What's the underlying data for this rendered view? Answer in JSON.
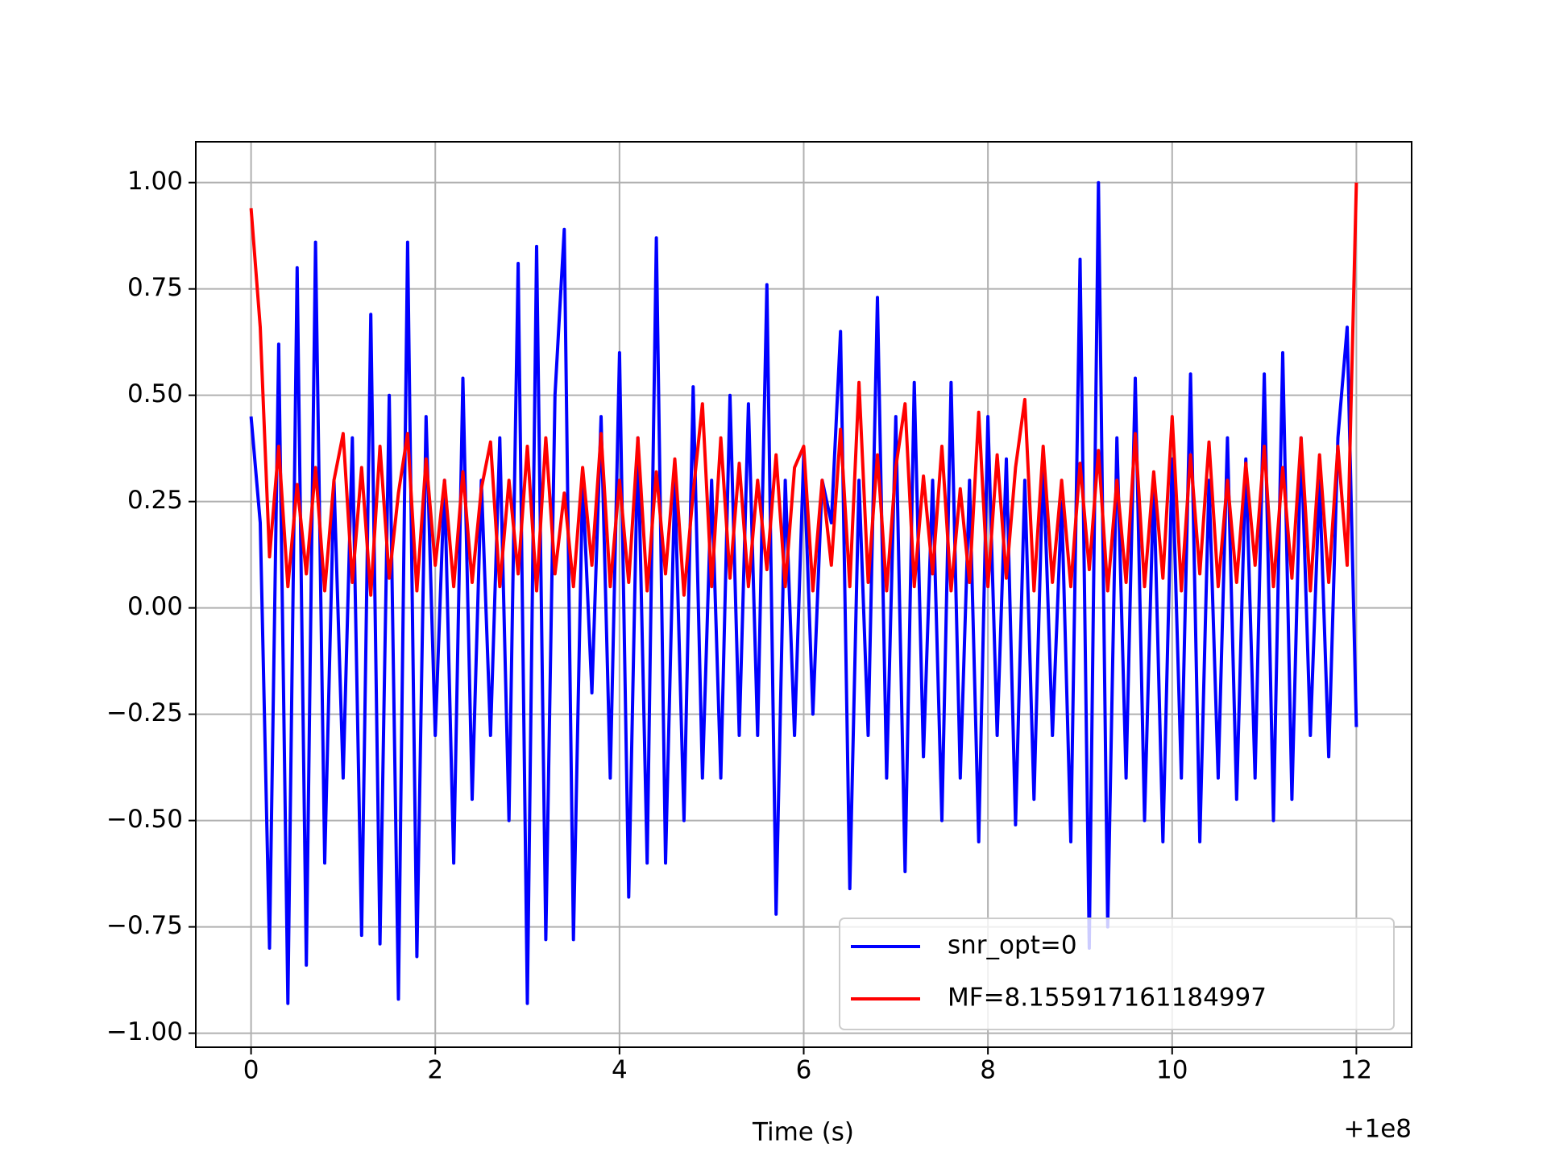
{
  "chart_data": {
    "type": "line",
    "xlabel": "Time (s)",
    "x_offset_label": "+1e8",
    "x": [
      0,
      0.1,
      0.2,
      0.3,
      0.4,
      0.5,
      0.6,
      0.7,
      0.8,
      0.9,
      1,
      1.1,
      1.2,
      1.3,
      1.4,
      1.5,
      1.6,
      1.7,
      1.8,
      1.9,
      2,
      2.1,
      2.2,
      2.3,
      2.4,
      2.5,
      2.6,
      2.7,
      2.8,
      2.9,
      3,
      3.1,
      3.2,
      3.3,
      3.4,
      3.5,
      3.6,
      3.7,
      3.8,
      3.9,
      4,
      4.1,
      4.2,
      4.3,
      4.4,
      4.5,
      4.6,
      4.7,
      4.8,
      4.9,
      5,
      5.1,
      5.2,
      5.3,
      5.4,
      5.5,
      5.6,
      5.7,
      5.8,
      5.9,
      6,
      6.1,
      6.2,
      6.3,
      6.4,
      6.5,
      6.6,
      6.7,
      6.8,
      6.9,
      7,
      7.1,
      7.2,
      7.3,
      7.4,
      7.5,
      7.6,
      7.7,
      7.8,
      7.9,
      8,
      8.1,
      8.2,
      8.3,
      8.4,
      8.5,
      8.6,
      8.7,
      8.8,
      8.9,
      9,
      9.1,
      9.2,
      9.3,
      9.4,
      9.5,
      9.6,
      9.7,
      9.8,
      9.9,
      10,
      10.1,
      10.2,
      10.3,
      10.4,
      10.5,
      10.6,
      10.7,
      10.8,
      10.9,
      11,
      11.1,
      11.2,
      11.3,
      11.4,
      11.5,
      11.6,
      11.7,
      11.8,
      11.9,
      12
    ],
    "series": [
      {
        "name": "snr_opt=0",
        "color": "#0000ff",
        "values": [
          0.45,
          0.2,
          -0.8,
          0.62,
          -0.93,
          0.8,
          -0.84,
          0.86,
          -0.6,
          0.3,
          -0.4,
          0.4,
          -0.77,
          0.69,
          -0.79,
          0.5,
          -0.92,
          0.86,
          -0.82,
          0.45,
          -0.3,
          0.3,
          -0.6,
          0.54,
          -0.45,
          0.3,
          -0.3,
          0.4,
          -0.5,
          0.81,
          -0.93,
          0.85,
          -0.78,
          0.5,
          0.89,
          -0.78,
          0.3,
          -0.2,
          0.45,
          -0.4,
          0.6,
          -0.68,
          0.4,
          -0.6,
          0.87,
          -0.6,
          0.3,
          -0.5,
          0.52,
          -0.4,
          0.3,
          -0.4,
          0.5,
          -0.3,
          0.48,
          -0.3,
          0.76,
          -0.72,
          0.3,
          -0.3,
          0.36,
          -0.25,
          0.3,
          0.2,
          0.65,
          -0.66,
          0.3,
          -0.3,
          0.73,
          -0.4,
          0.45,
          -0.62,
          0.53,
          -0.35,
          0.3,
          -0.5,
          0.53,
          -0.4,
          0.3,
          -0.55,
          0.45,
          -0.3,
          0.35,
          -0.51,
          0.3,
          -0.45,
          0.35,
          -0.3,
          0.25,
          -0.55,
          0.82,
          -0.8,
          1.0,
          -0.75,
          0.4,
          -0.4,
          0.54,
          -0.5,
          0.3,
          -0.55,
          0.35,
          -0.4,
          0.55,
          -0.55,
          0.3,
          -0.4,
          0.4,
          -0.45,
          0.35,
          -0.4,
          0.55,
          -0.5,
          0.6,
          -0.45,
          0.4,
          -0.3,
          0.3,
          -0.35,
          0.4,
          0.66,
          -0.28
        ]
      },
      {
        "name": "MF=8.155917161184997",
        "color": "#ff0000",
        "values": [
          0.94,
          0.66,
          0.12,
          0.38,
          0.05,
          0.29,
          0.08,
          0.33,
          0.04,
          0.3,
          0.41,
          0.06,
          0.33,
          0.03,
          0.38,
          0.07,
          0.27,
          0.41,
          0.04,
          0.35,
          0.1,
          0.3,
          0.05,
          0.32,
          0.06,
          0.28,
          0.39,
          0.05,
          0.3,
          0.08,
          0.38,
          0.04,
          0.4,
          0.08,
          0.27,
          0.05,
          0.33,
          0.1,
          0.41,
          0.05,
          0.3,
          0.06,
          0.4,
          0.04,
          0.32,
          0.08,
          0.35,
          0.03,
          0.27,
          0.48,
          0.05,
          0.4,
          0.07,
          0.34,
          0.05,
          0.3,
          0.09,
          0.36,
          0.05,
          0.33,
          0.38,
          0.04,
          0.3,
          0.1,
          0.42,
          0.05,
          0.53,
          0.06,
          0.36,
          0.04,
          0.33,
          0.48,
          0.05,
          0.31,
          0.08,
          0.38,
          0.04,
          0.28,
          0.06,
          0.46,
          0.05,
          0.36,
          0.07,
          0.33,
          0.49,
          0.04,
          0.38,
          0.06,
          0.3,
          0.05,
          0.34,
          0.09,
          0.37,
          0.04,
          0.3,
          0.06,
          0.41,
          0.05,
          0.32,
          0.07,
          0.45,
          0.04,
          0.36,
          0.08,
          0.39,
          0.05,
          0.3,
          0.06,
          0.34,
          0.1,
          0.38,
          0.05,
          0.33,
          0.07,
          0.4,
          0.04,
          0.36,
          0.06,
          0.38,
          0.1,
          1.0
        ]
      }
    ],
    "xlim": [
      -0.6,
      12.6
    ],
    "xticks": [
      0,
      2,
      4,
      6,
      8,
      10,
      12
    ],
    "ylim": [
      -1.033,
      1.096
    ],
    "yticks": [
      {
        "value": -1,
        "label": "−1.00"
      },
      {
        "value": -0.75,
        "label": "−0.75"
      },
      {
        "value": -0.5,
        "label": "−0.50"
      },
      {
        "value": -0.25,
        "label": "−0.25"
      },
      {
        "value": 0,
        "label": "0.00"
      },
      {
        "value": 0.25,
        "label": "0.25"
      },
      {
        "value": 0.5,
        "label": "0.50"
      },
      {
        "value": 0.75,
        "label": "0.75"
      },
      {
        "value": 1,
        "label": "1.00"
      }
    ],
    "grid": true,
    "legend": "lower right"
  }
}
